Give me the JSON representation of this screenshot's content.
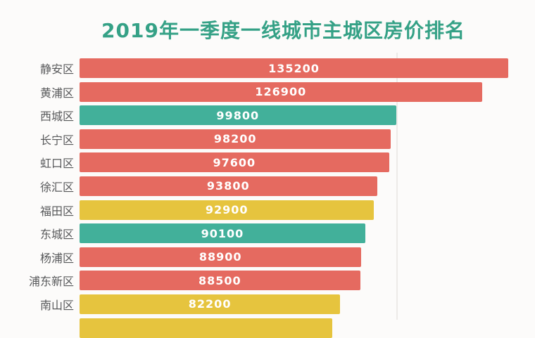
{
  "title": "2019年一季度一线城市主城区房价排名",
  "colors": {
    "title_text": "#35a186",
    "label_text": "#57585a",
    "value_text": "#ffffff",
    "gridline": "#edeae8",
    "background": "#fcfbfa",
    "red": "#e56a60",
    "teal": "#42b09a",
    "yellow": "#e6c43e"
  },
  "chart_data": {
    "type": "bar",
    "orientation": "horizontal",
    "title": "2019年一季度一线城市主城区房价排名",
    "categories": [
      "静安区",
      "黄浦区",
      "西城区",
      "长宁区",
      "虹口区",
      "徐汇区",
      "福田区",
      "东城区",
      "杨浦区",
      "浦东新区",
      "南山区"
    ],
    "values": [
      135200,
      126900,
      99800,
      98200,
      97600,
      93800,
      92900,
      90100,
      88900,
      88500,
      82200
    ],
    "bar_colors": [
      "#e56a60",
      "#e56a60",
      "#42b09a",
      "#e56a60",
      "#e56a60",
      "#e56a60",
      "#e6c43e",
      "#42b09a",
      "#e56a60",
      "#e56a60",
      "#e6c43e"
    ],
    "value_label_position": "inside-center",
    "xlim": [
      0,
      135200
    ],
    "gridline_values": [
      100000
    ],
    "grid": "single-faint-vertical-line",
    "sorted": "descending",
    "partial_next_bar": {
      "color": "#e6c43e",
      "width_fraction": 0.59
    }
  }
}
